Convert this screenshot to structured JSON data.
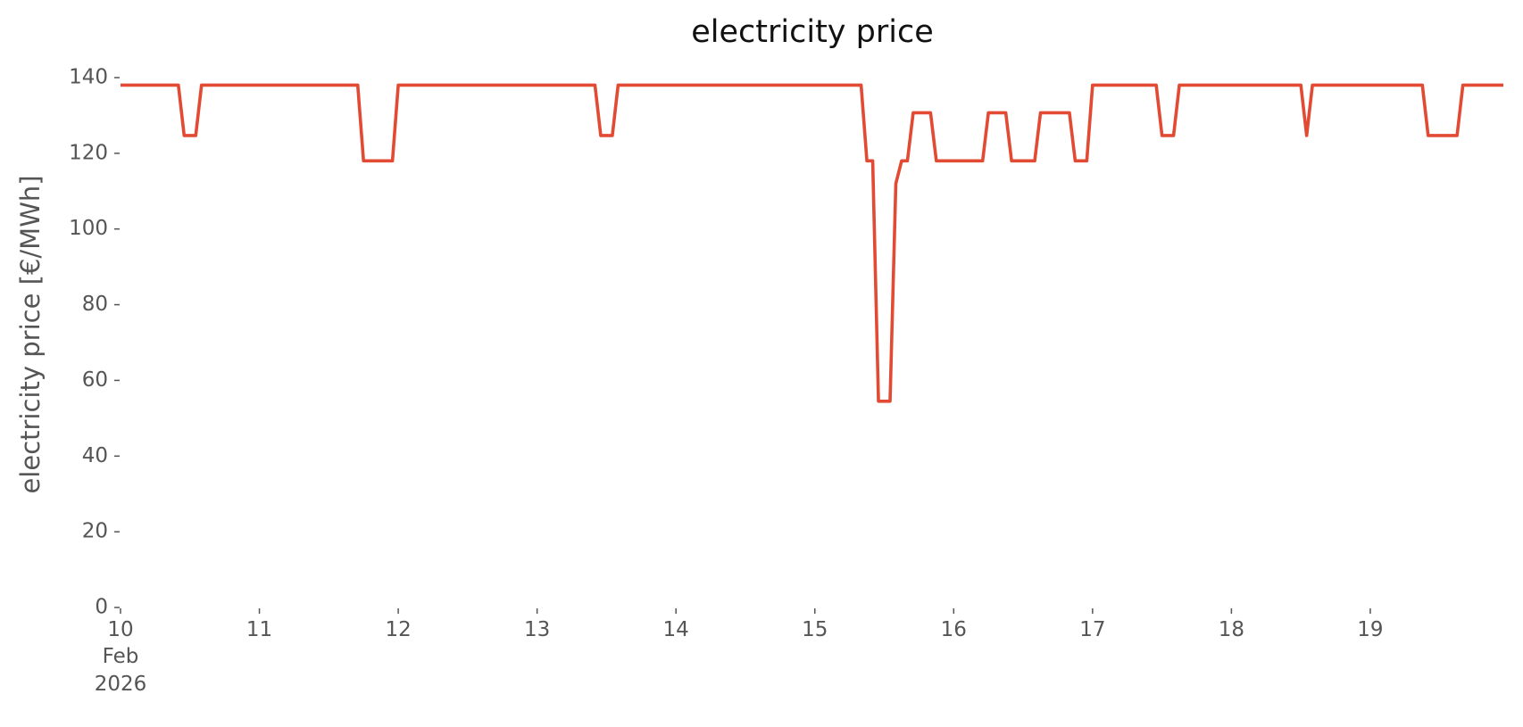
{
  "chart_data": {
    "type": "line",
    "title": "electricity price",
    "y_label": "electricity price [€/MWh]",
    "x": [
      10.0,
      10.4167,
      10.4583,
      10.5417,
      10.5833,
      11.7083,
      11.75,
      11.9583,
      12.0,
      13.4167,
      13.4583,
      13.5417,
      13.5833,
      15.3333,
      15.375,
      15.4167,
      15.4583,
      15.5417,
      15.5833,
      15.625,
      15.6667,
      15.7083,
      15.8333,
      15.875,
      16.2083,
      16.25,
      16.375,
      16.4167,
      16.5833,
      16.625,
      16.8333,
      16.875,
      16.9583,
      17.0,
      17.4583,
      17.5,
      17.5833,
      17.625,
      18.5,
      18.5417,
      18.5833,
      19.375,
      19.4167,
      19.625,
      19.6667,
      19.9583
    ],
    "series": [
      {
        "name": "electricity price",
        "color": "#e24a33",
        "values": [
          138,
          138,
          124.7,
          124.7,
          138,
          138,
          118,
          118,
          138,
          138,
          124.7,
          124.7,
          138,
          138,
          118,
          118,
          54.5,
          54.5,
          112,
          118,
          118,
          130.7,
          130.7,
          118,
          118,
          130.7,
          130.7,
          118,
          118,
          130.7,
          130.7,
          118,
          118,
          138,
          138,
          124.7,
          124.7,
          138,
          138,
          124.7,
          138,
          138,
          124.7,
          124.7,
          138,
          138
        ]
      }
    ],
    "xlim": [
      10,
      19.9583
    ],
    "xticks": [
      10,
      11,
      12,
      13,
      14,
      15,
      16,
      17,
      18,
      19
    ],
    "x_date_label": [
      "Feb",
      "2026"
    ],
    "ylim": [
      0,
      140
    ],
    "yticks": [
      0,
      20,
      40,
      60,
      80,
      100,
      120,
      140
    ],
    "grid": false
  }
}
